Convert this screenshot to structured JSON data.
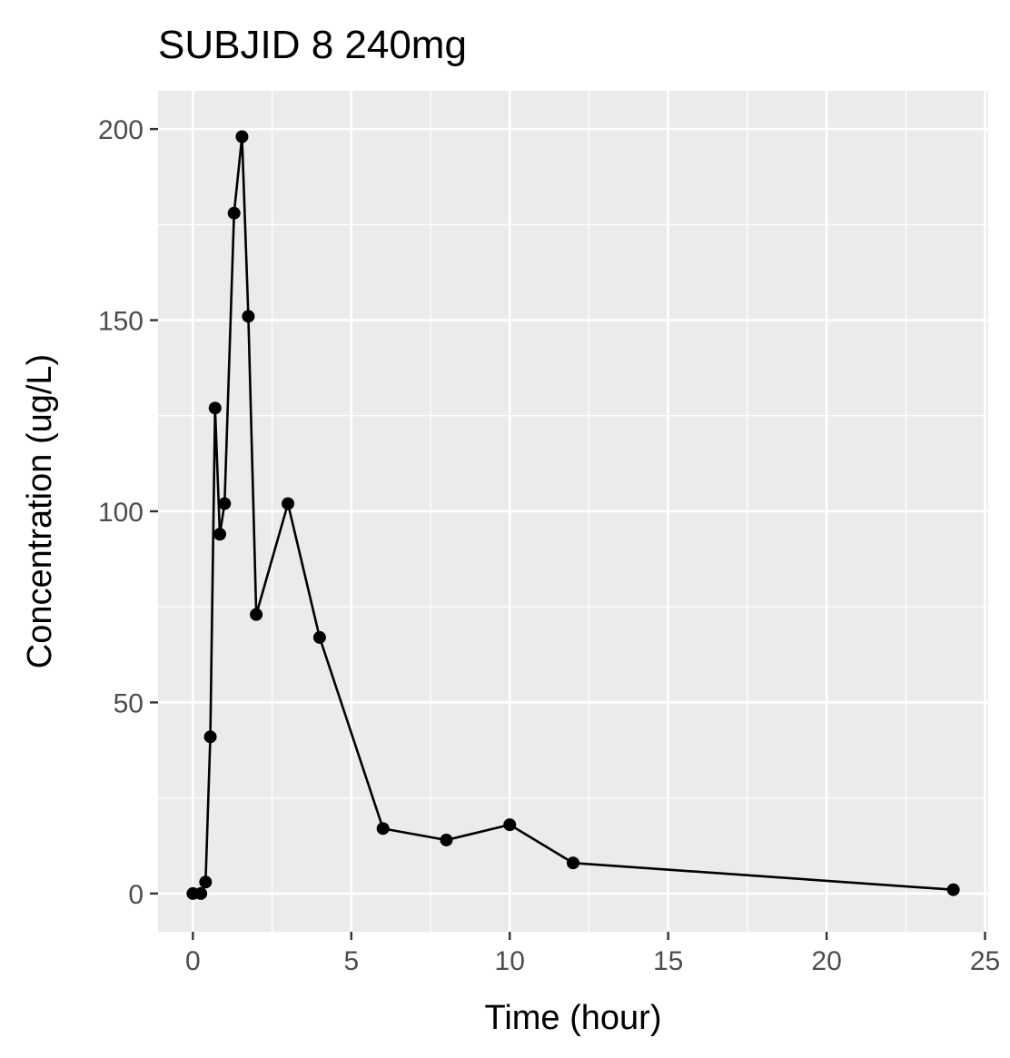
{
  "chart_data": {
    "type": "line",
    "title": "SUBJID 8 240mg",
    "xlabel": "Time (hour)",
    "ylabel": "Concentration (ug/L)",
    "xlim": [
      -1.1,
      25.1
    ],
    "ylim": [
      -10,
      210
    ],
    "xticks": [
      0,
      5,
      10,
      15,
      20,
      25
    ],
    "yticks": [
      0,
      50,
      100,
      150,
      200
    ],
    "grid": true,
    "panel_background": "#ebebeb",
    "grid_color": "#ffffff",
    "series": [
      {
        "color": "#000000",
        "marker": "circle",
        "points": [
          {
            "x": 0,
            "y": 0
          },
          {
            "x": 0.25,
            "y": 0
          },
          {
            "x": 0.4,
            "y": 3
          },
          {
            "x": 0.55,
            "y": 41
          },
          {
            "x": 0.7,
            "y": 127
          },
          {
            "x": 0.85,
            "y": 94
          },
          {
            "x": 1.0,
            "y": 102
          },
          {
            "x": 1.3,
            "y": 178
          },
          {
            "x": 1.55,
            "y": 198
          },
          {
            "x": 1.75,
            "y": 151
          },
          {
            "x": 2.0,
            "y": 73
          },
          {
            "x": 3.0,
            "y": 102
          },
          {
            "x": 4.0,
            "y": 67
          },
          {
            "x": 6.0,
            "y": 17
          },
          {
            "x": 8.0,
            "y": 14
          },
          {
            "x": 10.0,
            "y": 18
          },
          {
            "x": 12.0,
            "y": 8
          },
          {
            "x": 24.0,
            "y": 1
          }
        ]
      }
    ]
  }
}
